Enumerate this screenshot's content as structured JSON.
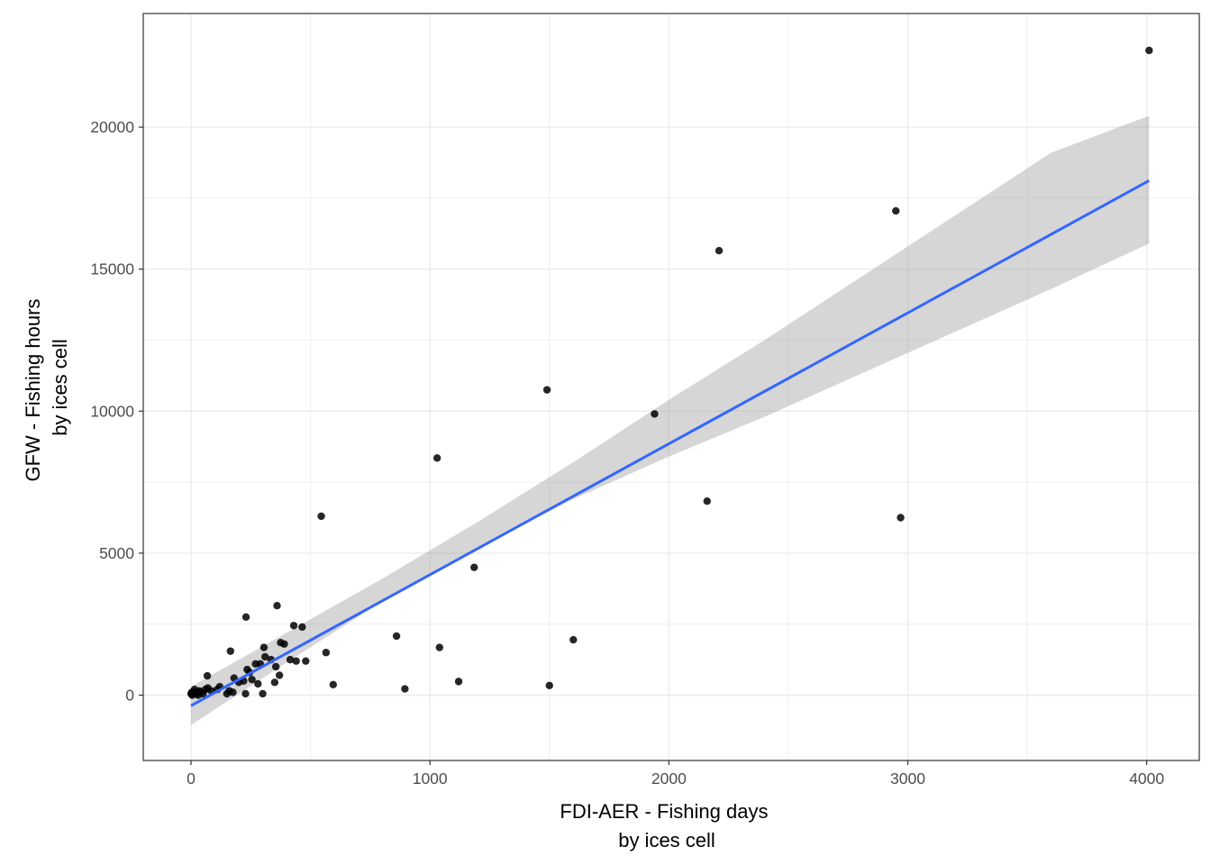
{
  "chart_data": {
    "type": "scatter",
    "xlabel_lines": [
      "FDI-AER - Fishing days",
      "by ices cell"
    ],
    "ylabel_lines": [
      "GFW - Fishing hours",
      "by ices cell"
    ],
    "xlim": [
      -200,
      4220
    ],
    "ylim": [
      -2300,
      24000
    ],
    "x_ticks": [
      0,
      1000,
      2000,
      3000,
      4000
    ],
    "y_ticks": [
      0,
      5000,
      10000,
      15000,
      20000
    ],
    "grid": true,
    "colors": {
      "points": "#000000",
      "trend": "#3366ff",
      "ribbon": "#999999",
      "grid": "#ebebeb",
      "border": "#333333"
    },
    "points": [
      [
        4010,
        22700
      ],
      [
        2950,
        17050
      ],
      [
        2210,
        15650
      ],
      [
        1490,
        10750
      ],
      [
        1940,
        9900
      ],
      [
        1030,
        8350
      ],
      [
        2160,
        6830
      ],
      [
        2970,
        6250
      ],
      [
        545,
        6300
      ],
      [
        1185,
        4500
      ],
      [
        1600,
        1950
      ],
      [
        860,
        2080
      ],
      [
        1040,
        1680
      ],
      [
        1120,
        480
      ],
      [
        1500,
        340
      ],
      [
        895,
        220
      ],
      [
        595,
        370
      ],
      [
        565,
        1500
      ],
      [
        480,
        1200
      ],
      [
        465,
        2400
      ],
      [
        440,
        1200
      ],
      [
        430,
        2450
      ],
      [
        415,
        1250
      ],
      [
        390,
        1800
      ],
      [
        375,
        1850
      ],
      [
        370,
        700
      ],
      [
        360,
        3150
      ],
      [
        355,
        1000
      ],
      [
        350,
        450
      ],
      [
        335,
        1250
      ],
      [
        310,
        1350
      ],
      [
        305,
        1680
      ],
      [
        300,
        50
      ],
      [
        290,
        1100
      ],
      [
        280,
        400
      ],
      [
        270,
        1100
      ],
      [
        255,
        550
      ],
      [
        245,
        800
      ],
      [
        235,
        900
      ],
      [
        230,
        2750
      ],
      [
        228,
        50
      ],
      [
        220,
        500
      ],
      [
        200,
        450
      ],
      [
        180,
        600
      ],
      [
        175,
        100
      ],
      [
        165,
        1550
      ],
      [
        160,
        150
      ],
      [
        150,
        50
      ],
      [
        120,
        300
      ],
      [
        110,
        200
      ],
      [
        85,
        150
      ],
      [
        70,
        250
      ],
      [
        68,
        680
      ],
      [
        60,
        200
      ],
      [
        50,
        50
      ],
      [
        40,
        100
      ],
      [
        35,
        150
      ],
      [
        30,
        0
      ],
      [
        25,
        100
      ],
      [
        20,
        50
      ],
      [
        15,
        200
      ],
      [
        10,
        80
      ],
      [
        5,
        0
      ],
      [
        0,
        50
      ],
      [
        3,
        100
      ]
    ],
    "trend": {
      "x_range": [
        0,
        4010
      ],
      "intercept": -370,
      "slope": 4.61
    },
    "ribbon": [
      [
        0,
        -1050,
        300
      ],
      [
        400,
        1150,
        2200
      ],
      [
        800,
        3300,
        4100
      ],
      [
        1200,
        5200,
        6100
      ],
      [
        1600,
        6900,
        8200
      ],
      [
        2000,
        8400,
        10400
      ],
      [
        2400,
        9800,
        12500
      ],
      [
        2800,
        11300,
        14700
      ],
      [
        3200,
        12800,
        16900
      ],
      [
        3600,
        14300,
        19100
      ],
      [
        4010,
        15900,
        20400
      ]
    ]
  }
}
